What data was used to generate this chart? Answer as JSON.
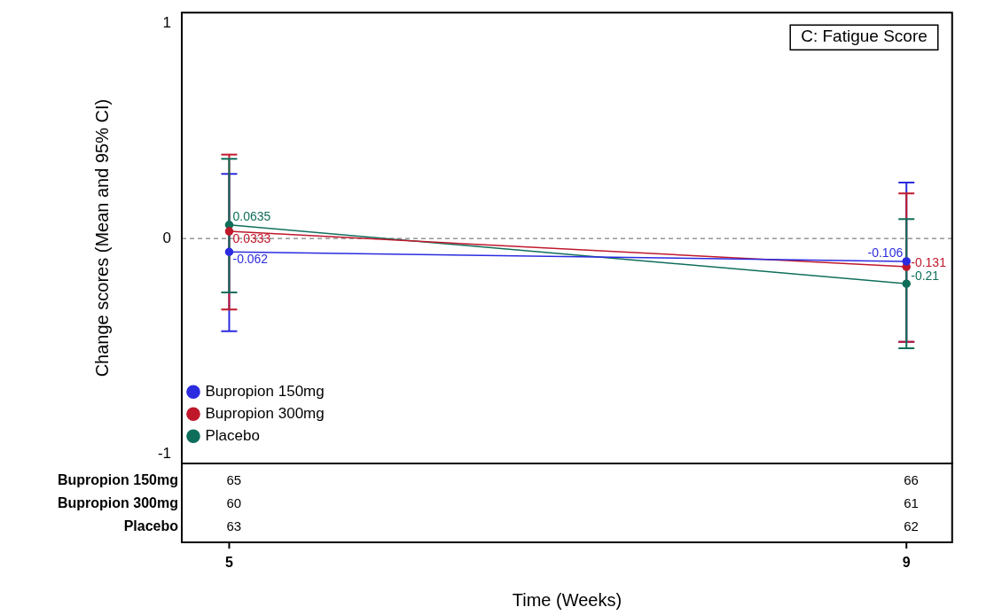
{
  "chart_data": {
    "type": "line",
    "title": "C: Fatigue Score",
    "xlabel": "Time (Weeks)",
    "ylabel": "Change scores (Mean and 95% CI)",
    "x": [
      5,
      9
    ],
    "xlim": [
      4.72,
      9.27
    ],
    "xticks": [
      5,
      9
    ],
    "ylim": [
      -1.045,
      1.05
    ],
    "yticks": [
      -1,
      0,
      1
    ],
    "series": [
      {
        "name": "Bupropion 150mg",
        "color": "#2b2be0",
        "values": [
          -0.062,
          -0.106
        ],
        "errors": [
          [
            -0.43,
            0.3
          ],
          [
            -0.48,
            0.26
          ]
        ]
      },
      {
        "name": "Bupropion 300mg",
        "color": "#c0182b",
        "values": [
          0.0333,
          -0.131
        ],
        "errors": [
          [
            -0.33,
            0.39
          ],
          [
            -0.48,
            0.21
          ]
        ]
      },
      {
        "name": "Placebo",
        "color": "#0f6e5a",
        "values": [
          0.0635,
          -0.21
        ],
        "errors": [
          [
            -0.25,
            0.37
          ],
          [
            -0.51,
            0.09
          ]
        ]
      }
    ],
    "data_labels": true,
    "marker": "circle",
    "line_style": "solid",
    "legend": "bottom left",
    "grid": false,
    "ref_lines": [
      {
        "axis": "y",
        "value": 0,
        "color": "#808080",
        "line_style": "dashed"
      }
    ],
    "annotations": [
      "65",
      "66",
      "60",
      "61",
      "63",
      "62"
    ]
  }
}
